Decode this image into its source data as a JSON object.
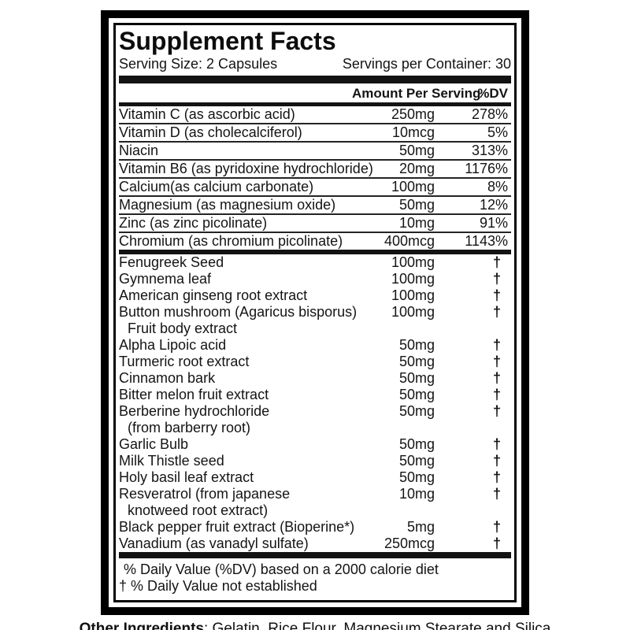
{
  "colors": {
    "text": "#141414",
    "border": "#000000",
    "bar": "#131313"
  },
  "title": "Supplement Facts",
  "serving": {
    "size": "Serving Size: 2 Capsules",
    "per_container": "Servings per Container: 30"
  },
  "columns": {
    "amount": "Amount Per Serving",
    "dv": "%DV"
  },
  "vitamins": [
    {
      "name": "Vitamin C (as ascorbic acid)",
      "amount": "250mg",
      "dv": "278%"
    },
    {
      "name": "Vitamin D (as cholecalciferol)",
      "amount": "10mcg",
      "dv": "5%"
    },
    {
      "name": "Niacin",
      "amount": "50mg",
      "dv": "313%"
    },
    {
      "name": "Vitamin B6 (as pyridoxine hydrochloride)",
      "amount": "20mg",
      "dv": "1176%"
    },
    {
      "name": "Calcium(as calcium carbonate)",
      "amount": "100mg",
      "dv": "8%"
    },
    {
      "name": "Magnesium (as magnesium oxide)",
      "amount": "50mg",
      "dv": "12%"
    },
    {
      "name": "Zinc (as zinc picolinate)",
      "amount": "10mg",
      "dv": "91%"
    },
    {
      "name": "Chromium (as chromium picolinate)",
      "amount": "400mcg",
      "dv": "1143%"
    }
  ],
  "botanicals": [
    {
      "name": "Fenugreek Seed",
      "amount": "100mg",
      "dv": "†"
    },
    {
      "name": "Gymnema leaf",
      "amount": "100mg",
      "dv": "†"
    },
    {
      "name": "American ginseng root extract",
      "amount": "100mg",
      "dv": "†"
    },
    {
      "name": "Button mushroom (Agaricus bisporus)",
      "name2": "Fruit body extract",
      "amount": "100mg",
      "dv": "†"
    },
    {
      "name": "Alpha Lipoic acid",
      "amount": "50mg",
      "dv": "†"
    },
    {
      "name": "Turmeric root extract",
      "amount": "50mg",
      "dv": "†"
    },
    {
      "name": "Cinnamon bark",
      "amount": "50mg",
      "dv": "†"
    },
    {
      "name": "Bitter melon fruit extract",
      "amount": "50mg",
      "dv": "†"
    },
    {
      "name": "Berberine hydrochloride",
      "name2": "(from barberry root)",
      "amount": "50mg",
      "dv": "†"
    },
    {
      "name": "Garlic Bulb",
      "amount": "50mg",
      "dv": "†"
    },
    {
      "name": "Milk Thistle seed",
      "amount": "50mg",
      "dv": "†"
    },
    {
      "name": "Holy basil leaf extract",
      "amount": "50mg",
      "dv": "†"
    },
    {
      "name": "Resveratrol (from japanese",
      "name2": "knotweed root extract)",
      "amount": "10mg",
      "dv": "†"
    },
    {
      "name": "Black pepper fruit extract (Bioperine*)",
      "amount": "5mg",
      "dv": "†"
    },
    {
      "name": "Vanadium (as vanadyl sulfate)",
      "amount": "250mcg",
      "dv": "†"
    }
  ],
  "footnotes": [
    "% Daily Value (%DV) based on a 2000 calorie diet",
    "† % Daily Value not established"
  ],
  "other_ingredients": {
    "label": "Other Ingredients",
    "value": ": Gelatin, Rice Flour, Magnesium Stearate and Silica"
  }
}
